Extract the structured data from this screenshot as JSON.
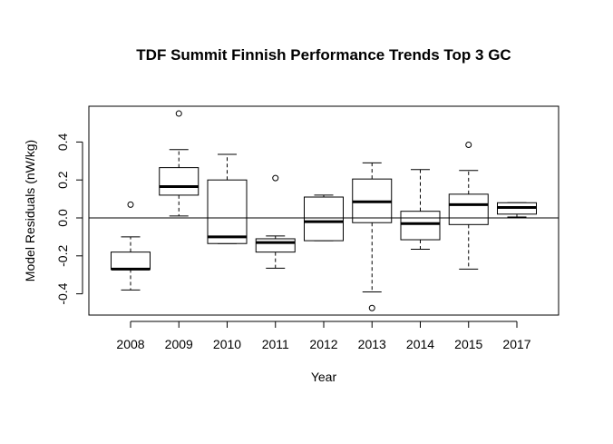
{
  "chart_data": {
    "type": "boxplot",
    "title": "TDF Summit Finnish Performance Trends Top 3 GC",
    "xlabel": "Year",
    "ylabel": "Model Residuals (nW/kg)",
    "ylim": [
      -0.5,
      0.58
    ],
    "yticks": [
      -0.4,
      -0.2,
      0.0,
      0.2,
      0.4
    ],
    "ytick_labels": [
      "-0.4",
      "-0.2",
      "0.0",
      "0.2",
      "0.4"
    ],
    "reference_line": 0.0,
    "grid": false,
    "categories": [
      "2008",
      "2009",
      "2010",
      "2011",
      "2012",
      "2013",
      "2014",
      "2015",
      "2017"
    ],
    "boxes": [
      {
        "category": "2008",
        "whisker_low": -0.38,
        "q1": -0.27,
        "median": -0.27,
        "q3": -0.18,
        "whisker_high": -0.1,
        "outliers": [
          0.07
        ]
      },
      {
        "category": "2009",
        "whisker_low": 0.01,
        "q1": 0.12,
        "median": 0.165,
        "q3": 0.265,
        "whisker_high": 0.36,
        "outliers": [
          0.55
        ]
      },
      {
        "category": "2010",
        "whisker_low": -0.135,
        "q1": -0.135,
        "median": -0.1,
        "q3": 0.2,
        "whisker_high": 0.335,
        "outliers": []
      },
      {
        "category": "2011",
        "whisker_low": -0.265,
        "q1": -0.18,
        "median": -0.13,
        "q3": -0.11,
        "whisker_high": -0.095,
        "outliers": [
          0.21
        ]
      },
      {
        "category": "2012",
        "whisker_low": -0.12,
        "q1": -0.12,
        "median": -0.02,
        "q3": 0.11,
        "whisker_high": 0.12,
        "outliers": []
      },
      {
        "category": "2013",
        "whisker_low": -0.39,
        "q1": -0.025,
        "median": 0.085,
        "q3": 0.205,
        "whisker_high": 0.29,
        "outliers": [
          -0.475
        ]
      },
      {
        "category": "2014",
        "whisker_low": -0.165,
        "q1": -0.115,
        "median": -0.03,
        "q3": 0.035,
        "whisker_high": 0.255,
        "outliers": []
      },
      {
        "category": "2015",
        "whisker_low": -0.27,
        "q1": -0.035,
        "median": 0.07,
        "q3": 0.125,
        "whisker_high": 0.25,
        "outliers": [
          0.385
        ]
      },
      {
        "category": "2017",
        "whisker_low": 0.005,
        "q1": 0.02,
        "median": 0.055,
        "q3": 0.08,
        "whisker_high": 0.08,
        "outliers": []
      }
    ]
  }
}
